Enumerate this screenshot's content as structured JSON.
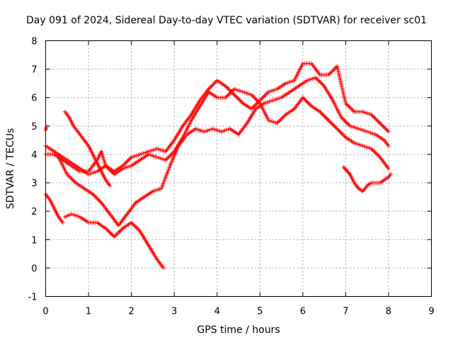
{
  "chart_data": {
    "type": "scatter",
    "title": "Day 091 of 2024, Sidereal Day-to-day VTEC variation (SDTVAR) for receiver sc01",
    "xlabel": "GPS time / hours",
    "ylabel": "SDTVAR / TECUs",
    "xlim": [
      0,
      9
    ],
    "ylim": [
      -1,
      8
    ],
    "xticks": [
      "0",
      "1",
      "2",
      "3",
      "4",
      "5",
      "6",
      "7",
      "8",
      "9"
    ],
    "yticks": [
      "-1",
      "0",
      "1",
      "2",
      "3",
      "4",
      "5",
      "6",
      "7",
      "8"
    ],
    "grid": true,
    "legend": "none",
    "marker": "+",
    "color": "#ff0000",
    "series": [
      {
        "points": [
          [
            0.0,
            4.3
          ],
          [
            0.2,
            4.1
          ],
          [
            0.4,
            3.9
          ],
          [
            0.6,
            3.7
          ],
          [
            0.8,
            3.5
          ],
          [
            1.0,
            3.3
          ],
          [
            1.2,
            3.4
          ],
          [
            1.4,
            3.6
          ],
          [
            1.6,
            3.4
          ],
          [
            1.8,
            3.6
          ],
          [
            2.0,
            3.9
          ],
          [
            2.2,
            4.0
          ],
          [
            2.4,
            4.1
          ],
          [
            2.6,
            4.2
          ],
          [
            2.8,
            4.1
          ],
          [
            3.0,
            4.5
          ],
          [
            3.2,
            5.0
          ],
          [
            3.4,
            5.4
          ],
          [
            3.6,
            5.9
          ],
          [
            3.8,
            6.3
          ],
          [
            4.0,
            6.6
          ],
          [
            4.2,
            6.4
          ],
          [
            4.4,
            6.1
          ],
          [
            4.6,
            5.8
          ],
          [
            4.8,
            5.6
          ],
          [
            5.0,
            5.9
          ],
          [
            5.2,
            6.2
          ],
          [
            5.4,
            6.3
          ],
          [
            5.6,
            6.5
          ],
          [
            5.8,
            6.6
          ],
          [
            6.0,
            7.2
          ],
          [
            6.2,
            7.2
          ],
          [
            6.4,
            6.8
          ],
          [
            6.6,
            6.8
          ],
          [
            6.8,
            7.1
          ],
          [
            7.0,
            5.8
          ],
          [
            7.2,
            5.5
          ],
          [
            7.4,
            5.5
          ],
          [
            7.6,
            5.4
          ],
          [
            7.8,
            5.1
          ],
          [
            8.0,
            4.8
          ]
        ]
      },
      {
        "points": [
          [
            0.0,
            4.0
          ],
          [
            0.2,
            4.0
          ],
          [
            0.4,
            3.8
          ],
          [
            0.6,
            3.6
          ],
          [
            0.8,
            3.4
          ],
          [
            1.0,
            3.4
          ],
          [
            1.2,
            3.8
          ],
          [
            1.3,
            4.1
          ],
          [
            1.4,
            3.6
          ],
          [
            1.6,
            3.3
          ],
          [
            1.8,
            3.5
          ],
          [
            2.0,
            3.6
          ],
          [
            2.2,
            3.8
          ],
          [
            2.4,
            4.0
          ],
          [
            2.6,
            3.9
          ],
          [
            2.8,
            3.8
          ],
          [
            3.0,
            4.1
          ],
          [
            3.2,
            4.6
          ],
          [
            3.4,
            5.2
          ],
          [
            3.6,
            5.7
          ],
          [
            3.8,
            6.2
          ],
          [
            4.0,
            6.0
          ],
          [
            4.2,
            6.0
          ],
          [
            4.4,
            6.3
          ],
          [
            4.6,
            6.2
          ],
          [
            4.8,
            6.1
          ],
          [
            5.0,
            5.8
          ],
          [
            5.2,
            5.2
          ],
          [
            5.4,
            5.1
          ],
          [
            5.6,
            5.4
          ],
          [
            5.8,
            5.6
          ],
          [
            6.0,
            6.0
          ],
          [
            6.2,
            5.7
          ],
          [
            6.4,
            5.5
          ],
          [
            6.6,
            5.2
          ],
          [
            6.8,
            4.9
          ],
          [
            7.0,
            4.6
          ],
          [
            7.2,
            4.4
          ],
          [
            7.4,
            4.3
          ],
          [
            7.6,
            4.2
          ],
          [
            7.8,
            3.9
          ],
          [
            8.0,
            3.5
          ]
        ]
      },
      {
        "points": [
          [
            0.0,
            4.85
          ],
          [
            0.02,
            4.95
          ]
        ]
      },
      {
        "points": [
          [
            0.45,
            5.5
          ],
          [
            0.55,
            5.3
          ],
          [
            0.65,
            5.0
          ],
          [
            0.75,
            4.8
          ],
          [
            0.85,
            4.6
          ],
          [
            1.0,
            4.3
          ],
          [
            1.1,
            4.0
          ],
          [
            1.2,
            3.7
          ],
          [
            1.3,
            3.4
          ],
          [
            1.4,
            3.1
          ],
          [
            1.5,
            2.9
          ]
        ]
      },
      {
        "points": [
          [
            0.0,
            2.6
          ],
          [
            0.1,
            2.4
          ],
          [
            0.2,
            2.1
          ],
          [
            0.3,
            1.8
          ],
          [
            0.4,
            1.6
          ]
        ]
      },
      {
        "points": [
          [
            0.45,
            1.8
          ],
          [
            0.6,
            1.9
          ],
          [
            0.8,
            1.8
          ],
          [
            1.0,
            1.6
          ],
          [
            1.2,
            1.6
          ],
          [
            1.4,
            1.4
          ],
          [
            1.6,
            1.1
          ],
          [
            1.8,
            1.4
          ],
          [
            2.0,
            1.6
          ],
          [
            2.2,
            1.3
          ],
          [
            2.4,
            0.8
          ],
          [
            2.6,
            0.3
          ],
          [
            2.75,
            0.0
          ]
        ]
      },
      {
        "points": [
          [
            0.3,
            3.9
          ],
          [
            0.5,
            3.3
          ],
          [
            0.7,
            3.0
          ],
          [
            0.9,
            2.8
          ],
          [
            1.1,
            2.6
          ],
          [
            1.3,
            2.3
          ],
          [
            1.5,
            1.9
          ],
          [
            1.7,
            1.5
          ],
          [
            1.9,
            1.9
          ],
          [
            2.1,
            2.3
          ],
          [
            2.3,
            2.5
          ],
          [
            2.5,
            2.7
          ],
          [
            2.7,
            2.8
          ],
          [
            2.9,
            3.6
          ],
          [
            3.1,
            4.3
          ],
          [
            3.3,
            4.7
          ],
          [
            3.5,
            4.9
          ],
          [
            3.7,
            4.8
          ],
          [
            3.9,
            4.9
          ],
          [
            4.1,
            4.8
          ],
          [
            4.3,
            4.9
          ],
          [
            4.5,
            4.7
          ],
          [
            4.7,
            5.1
          ],
          [
            4.9,
            5.6
          ],
          [
            5.1,
            5.8
          ],
          [
            5.3,
            5.9
          ],
          [
            5.5,
            6.0
          ],
          [
            5.7,
            6.2
          ],
          [
            5.9,
            6.4
          ],
          [
            6.1,
            6.6
          ],
          [
            6.3,
            6.7
          ],
          [
            6.5,
            6.4
          ],
          [
            6.7,
            5.9
          ],
          [
            6.9,
            5.3
          ],
          [
            7.1,
            5.0
          ],
          [
            7.3,
            4.9
          ],
          [
            7.5,
            4.8
          ],
          [
            7.7,
            4.7
          ],
          [
            7.9,
            4.5
          ],
          [
            8.0,
            4.3
          ]
        ]
      },
      {
        "points": [
          [
            6.95,
            3.55
          ],
          [
            7.1,
            3.3
          ],
          [
            7.2,
            3.0
          ],
          [
            7.3,
            2.8
          ],
          [
            7.4,
            2.7
          ],
          [
            7.5,
            2.9
          ],
          [
            7.6,
            3.0
          ],
          [
            7.8,
            3.0
          ],
          [
            7.9,
            3.1
          ],
          [
            8.0,
            3.2
          ],
          [
            8.05,
            3.3
          ]
        ]
      }
    ]
  }
}
